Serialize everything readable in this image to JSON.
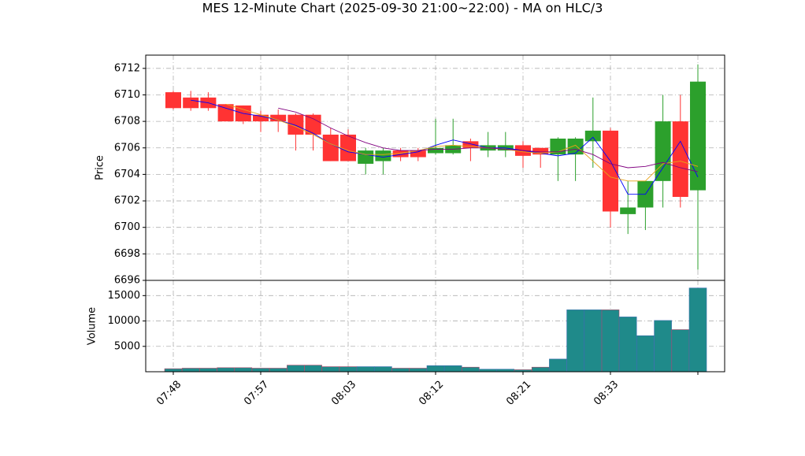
{
  "chart_data": {
    "type": "candlestick",
    "title": "MES 12-Minute Chart (2025-09-30 21:00~22:00) - MA on HLC/3",
    "ylabel": "Price",
    "volume_label": "Volume",
    "categories": [
      "07:48",
      null,
      null,
      null,
      null,
      "07:57",
      null,
      null,
      null,
      null,
      "08:03",
      null,
      null,
      null,
      null,
      "08:12",
      null,
      null,
      null,
      null,
      "08:21",
      null,
      null,
      null,
      null,
      "08:33",
      null,
      null,
      null,
      null,
      null
    ],
    "open": [
      6710.2,
      6709.8,
      6709.8,
      6709.3,
      6709.2,
      6708.5,
      6708.5,
      6708.5,
      6708.5,
      6707,
      6707,
      6704.8,
      6705,
      6705.8,
      6705.8,
      6705.6,
      6705.6,
      6706.5,
      6705.8,
      6705.8,
      6706.2,
      6706,
      6705.5,
      6705.5,
      6706.5,
      6707.3,
      6701,
      6701.5,
      6703.5,
      6708,
      6702.8
    ],
    "high": [
      6710.3,
      6710.3,
      6710.2,
      6709.3,
      6709.2,
      6708.8,
      6708.9,
      6708.6,
      6708.6,
      6707.5,
      6707.4,
      6706,
      6706,
      6706,
      6706,
      6708.2,
      6708.2,
      6706.7,
      6707.2,
      6707.2,
      6706.5,
      6706,
      6706.8,
      6706.8,
      6709.8,
      6707.5,
      6703.5,
      6703.5,
      6710,
      6710,
      6712.3
    ],
    "low": [
      6708.9,
      6708.8,
      6708.8,
      6708,
      6707.8,
      6707.2,
      6707.2,
      6705.8,
      6705.8,
      6705,
      6705,
      6704,
      6704,
      6705,
      6705,
      6705.5,
      6705.5,
      6705,
      6705.3,
      6705.3,
      6704.5,
      6704.5,
      6703.5,
      6703.5,
      6704.5,
      6700,
      6699.5,
      6699.8,
      6701.5,
      6701.5,
      6696.8
    ],
    "close": [
      6709,
      6709,
      6709,
      6708,
      6708,
      6708,
      6708,
      6707,
      6707,
      6705,
      6705,
      6705.8,
      6705.8,
      6705.3,
      6705.3,
      6706,
      6706.2,
      6706,
      6706.2,
      6706.2,
      6705.4,
      6705.5,
      6706.7,
      6706.7,
      6707.3,
      6701.2,
      6701.5,
      6703.5,
      6708,
      6702.3,
      6711
    ],
    "volume": [
      600,
      700,
      700,
      800,
      800,
      700,
      700,
      1300,
      1300,
      1000,
      1000,
      1000,
      1000,
      700,
      700,
      1200,
      1200,
      900,
      500,
      500,
      400,
      900,
      2500,
      12200,
      12200,
      12200,
      10800,
      7100,
      10100,
      8300,
      16500
    ],
    "up_color": "#2ca02c",
    "down_color": "#ff3333",
    "volume_color": "#1f8a8a",
    "series": [
      {
        "color": "#0000ff",
        "values": [
          null,
          6709.6,
          6709.4,
          6709.0,
          6708.6,
          6708.4,
          6708.1,
          6707.7,
          6707.1,
          6706.3,
          6705.7,
          6705.5,
          6705.3,
          6705.5,
          6705.7,
          6706.2,
          6706.6,
          6706.3,
          6706.0,
          6706.0,
          6705.8,
          6705.6,
          6705.4,
          6705.6,
          6706.8,
          6705.0,
          6702.5,
          6702.5,
          6704.5,
          6706.5,
          6703.8
        ]
      },
      {
        "color": "#e8a317",
        "values": [
          null,
          null,
          null,
          6709.3,
          6708.9,
          6708.5,
          6708.1,
          6707.6,
          6707.0,
          6706.3,
          6705.8,
          6705.5,
          6705.5,
          6705.6,
          6705.8,
          6706.1,
          6706.2,
          6706.1,
          6706.0,
          6705.9,
          6705.7,
          6705.6,
          6705.7,
          6706.2,
          6705.0,
          6703.8,
          6703.5,
          6703.5,
          6704.8,
          6705.0,
          6704.6
        ]
      },
      {
        "color": "#800080",
        "values": [
          null,
          null,
          null,
          null,
          null,
          null,
          6709.0,
          6708.7,
          6708.2,
          6707.5,
          6706.9,
          6706.4,
          6706.0,
          6705.8,
          6705.8,
          6705.9,
          6705.9,
          6706.0,
          6706.0,
          6705.9,
          6705.8,
          6705.7,
          6705.7,
          6705.9,
          6705.5,
          6704.8,
          6704.5,
          6704.6,
          6704.9,
          6704.5,
          6704.2
        ]
      }
    ],
    "ylim": [
      6696,
      6713
    ],
    "yticks": [
      6696,
      6698,
      6700,
      6702,
      6704,
      6706,
      6708,
      6710,
      6712
    ],
    "volume_ylim": [
      0,
      18000
    ],
    "volume_yticks": [
      5000,
      10000,
      15000
    ],
    "grid": true
  }
}
